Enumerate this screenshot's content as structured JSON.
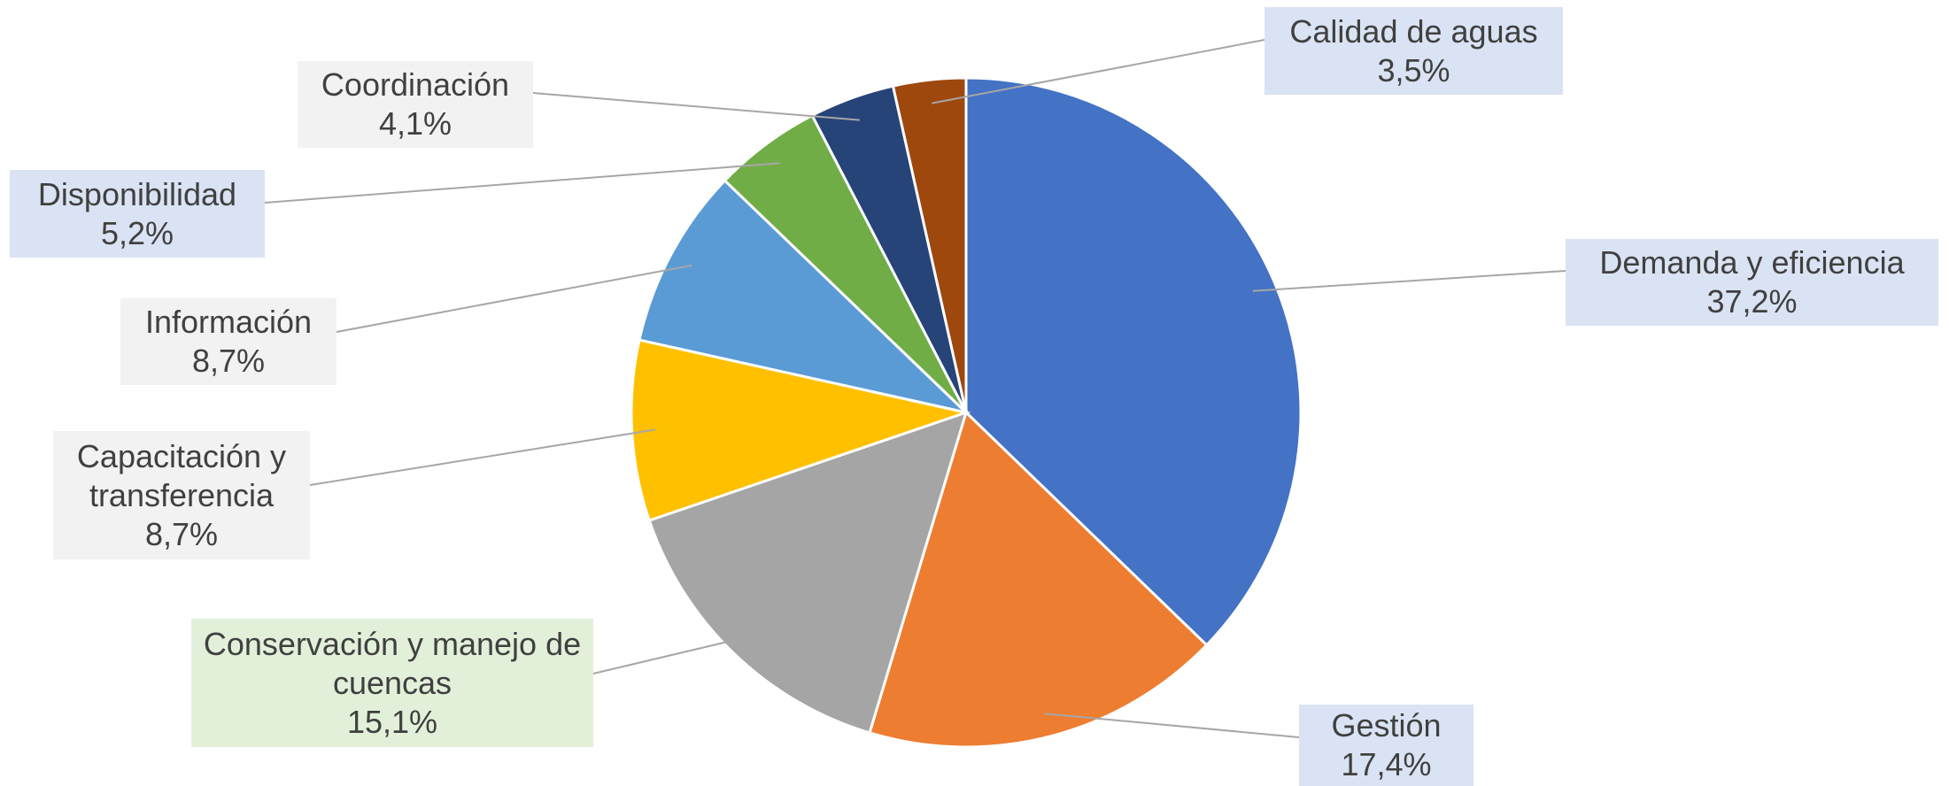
{
  "chart_data": {
    "type": "pie",
    "categories": [
      "Demanda y eficiencia",
      "Gestión",
      "Conservación y manejo de cuencas",
      "Capacitación y transferencia",
      "Información",
      "Disponibilidad",
      "Coordinación",
      "Calidad de aguas"
    ],
    "values": [
      37.2,
      17.4,
      15.1,
      8.7,
      8.7,
      5.2,
      4.1,
      3.5
    ],
    "value_labels": [
      "37,2%",
      "17,4%",
      "15,1%",
      "8,7%",
      "8,7%",
      "5,2%",
      "4,1%",
      "3,5%"
    ],
    "colors": [
      "#4472c4",
      "#ed7d31",
      "#a5a5a5",
      "#ffc000",
      "#5b9bd5",
      "#70ad47",
      "#264478",
      "#9e480e"
    ]
  }
}
